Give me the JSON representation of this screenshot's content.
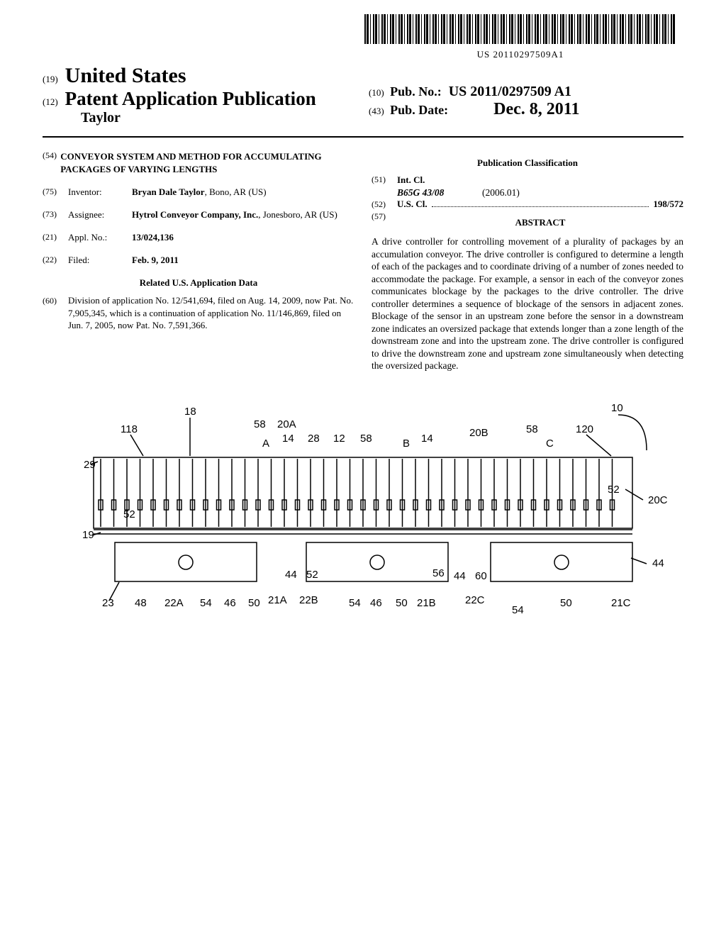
{
  "barcode_number": "US 20110297509A1",
  "header": {
    "code19": "(19)",
    "country": "United States",
    "code12": "(12)",
    "pub_type": "Patent Application Publication",
    "author": "Taylor",
    "code10": "(10)",
    "pub_no_label": "Pub. No.:",
    "pub_no": "US 2011/0297509 A1",
    "code43": "(43)",
    "pub_date_label": "Pub. Date:",
    "pub_date": "Dec. 8, 2011"
  },
  "left": {
    "code54": "(54)",
    "title": "CONVEYOR SYSTEM AND METHOD FOR ACCUMULATING PACKAGES OF VARYING LENGTHS",
    "code75": "(75)",
    "inventor_label": "Inventor:",
    "inventor": "Bryan Dale Taylor",
    "inventor_loc": ", Bono, AR (US)",
    "code73": "(73)",
    "assignee_label": "Assignee:",
    "assignee": "Hytrol Conveyor Company, Inc.",
    "assignee_loc": ", Jonesboro, AR (US)",
    "code21": "(21)",
    "appl_label": "Appl. No.:",
    "appl_no": "13/024,136",
    "code22": "(22)",
    "filed_label": "Filed:",
    "filed": "Feb. 9, 2011",
    "related_heading": "Related U.S. Application Data",
    "code60": "(60)",
    "related_text": "Division of application No. 12/541,694, filed on Aug. 14, 2009, now Pat. No. 7,905,345, which is a continuation of application No. 11/146,869, filed on Jun. 7, 2005, now Pat. No. 7,591,366."
  },
  "right": {
    "class_heading": "Publication Classification",
    "code51": "(51)",
    "intcl_label": "Int. Cl.",
    "intcl_code": "B65G 43/08",
    "intcl_date": "(2006.01)",
    "code52": "(52)",
    "uscl_label": "U.S. Cl.",
    "uscl_val": "198/572",
    "code57": "(57)",
    "abstract_label": "ABSTRACT",
    "abstract": "A drive controller for controlling movement of a plurality of packages by an accumulation conveyor. The drive controller is configured to determine a length of each of the packages and to coordinate driving of a number of zones needed to accommodate the package. For example, a sensor in each of the conveyor zones communicates blockage by the packages to the drive controller. The drive controller determines a sequence of blockage of the sensors in adjacent zones. Blockage of the sensor in an upstream zone before the sensor in a downstream zone indicates an oversized package that extends longer than a zone length of the downstream zone and into the upstream zone. The drive controller is configured to drive the downstream zone and upstream zone simultaneously when detecting the oversized package."
  },
  "figure": {
    "refs": [
      "18",
      "58",
      "20A",
      "14",
      "28",
      "12",
      "58",
      "14",
      "20B",
      "58",
      "120",
      "10",
      "118",
      "A",
      "B",
      "C",
      "29",
      "52",
      "20C",
      "19",
      "52",
      "44",
      "52",
      "56",
      "44",
      "60",
      "44",
      "23",
      "48",
      "22A",
      "54",
      "46",
      "50",
      "21A",
      "22B",
      "54",
      "46",
      "50",
      "21B",
      "22C",
      "54",
      "50",
      "21C"
    ]
  }
}
